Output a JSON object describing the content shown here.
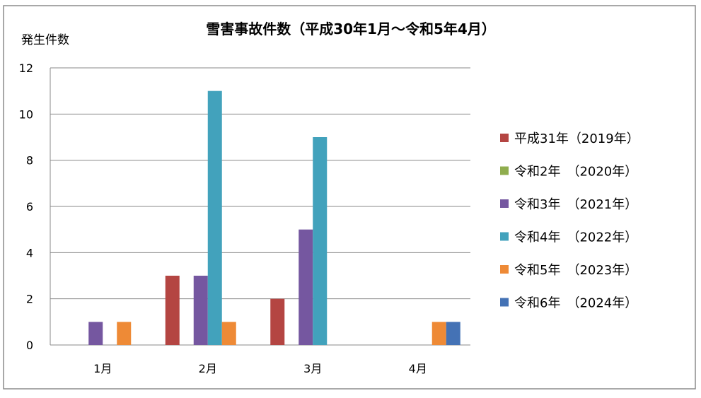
{
  "chart_data": {
    "type": "bar",
    "title": "雪害事故件数（平成30年1月～令和5年4月）",
    "ylabel": "発生件数",
    "xlabel": "",
    "categories": [
      "1月",
      "2月",
      "3月",
      "4月"
    ],
    "ylim": [
      0,
      12
    ],
    "yticks": [
      0,
      2,
      4,
      6,
      8,
      10,
      12
    ],
    "grid": true,
    "legend_position": "right",
    "series": [
      {
        "name": "平成31年（2019年）",
        "color": "#b44542",
        "values": [
          0,
          3,
          2,
          0
        ]
      },
      {
        "name": "令和2年　（2020年）",
        "color": "#8fad4e",
        "values": [
          0,
          0,
          0,
          0
        ]
      },
      {
        "name": "令和3年　（2021年）",
        "color": "#7557a0",
        "values": [
          1,
          3,
          5,
          0
        ]
      },
      {
        "name": "令和4年　（2022年）",
        "color": "#42a2bc",
        "values": [
          0,
          11,
          9,
          0
        ]
      },
      {
        "name": "令和5年　（2023年）",
        "color": "#ee8a36",
        "values": [
          1,
          1,
          0,
          1
        ]
      },
      {
        "name": "令和6年　（2024年）",
        "color": "#4472b5",
        "values": [
          0,
          0,
          0,
          1
        ]
      }
    ]
  }
}
